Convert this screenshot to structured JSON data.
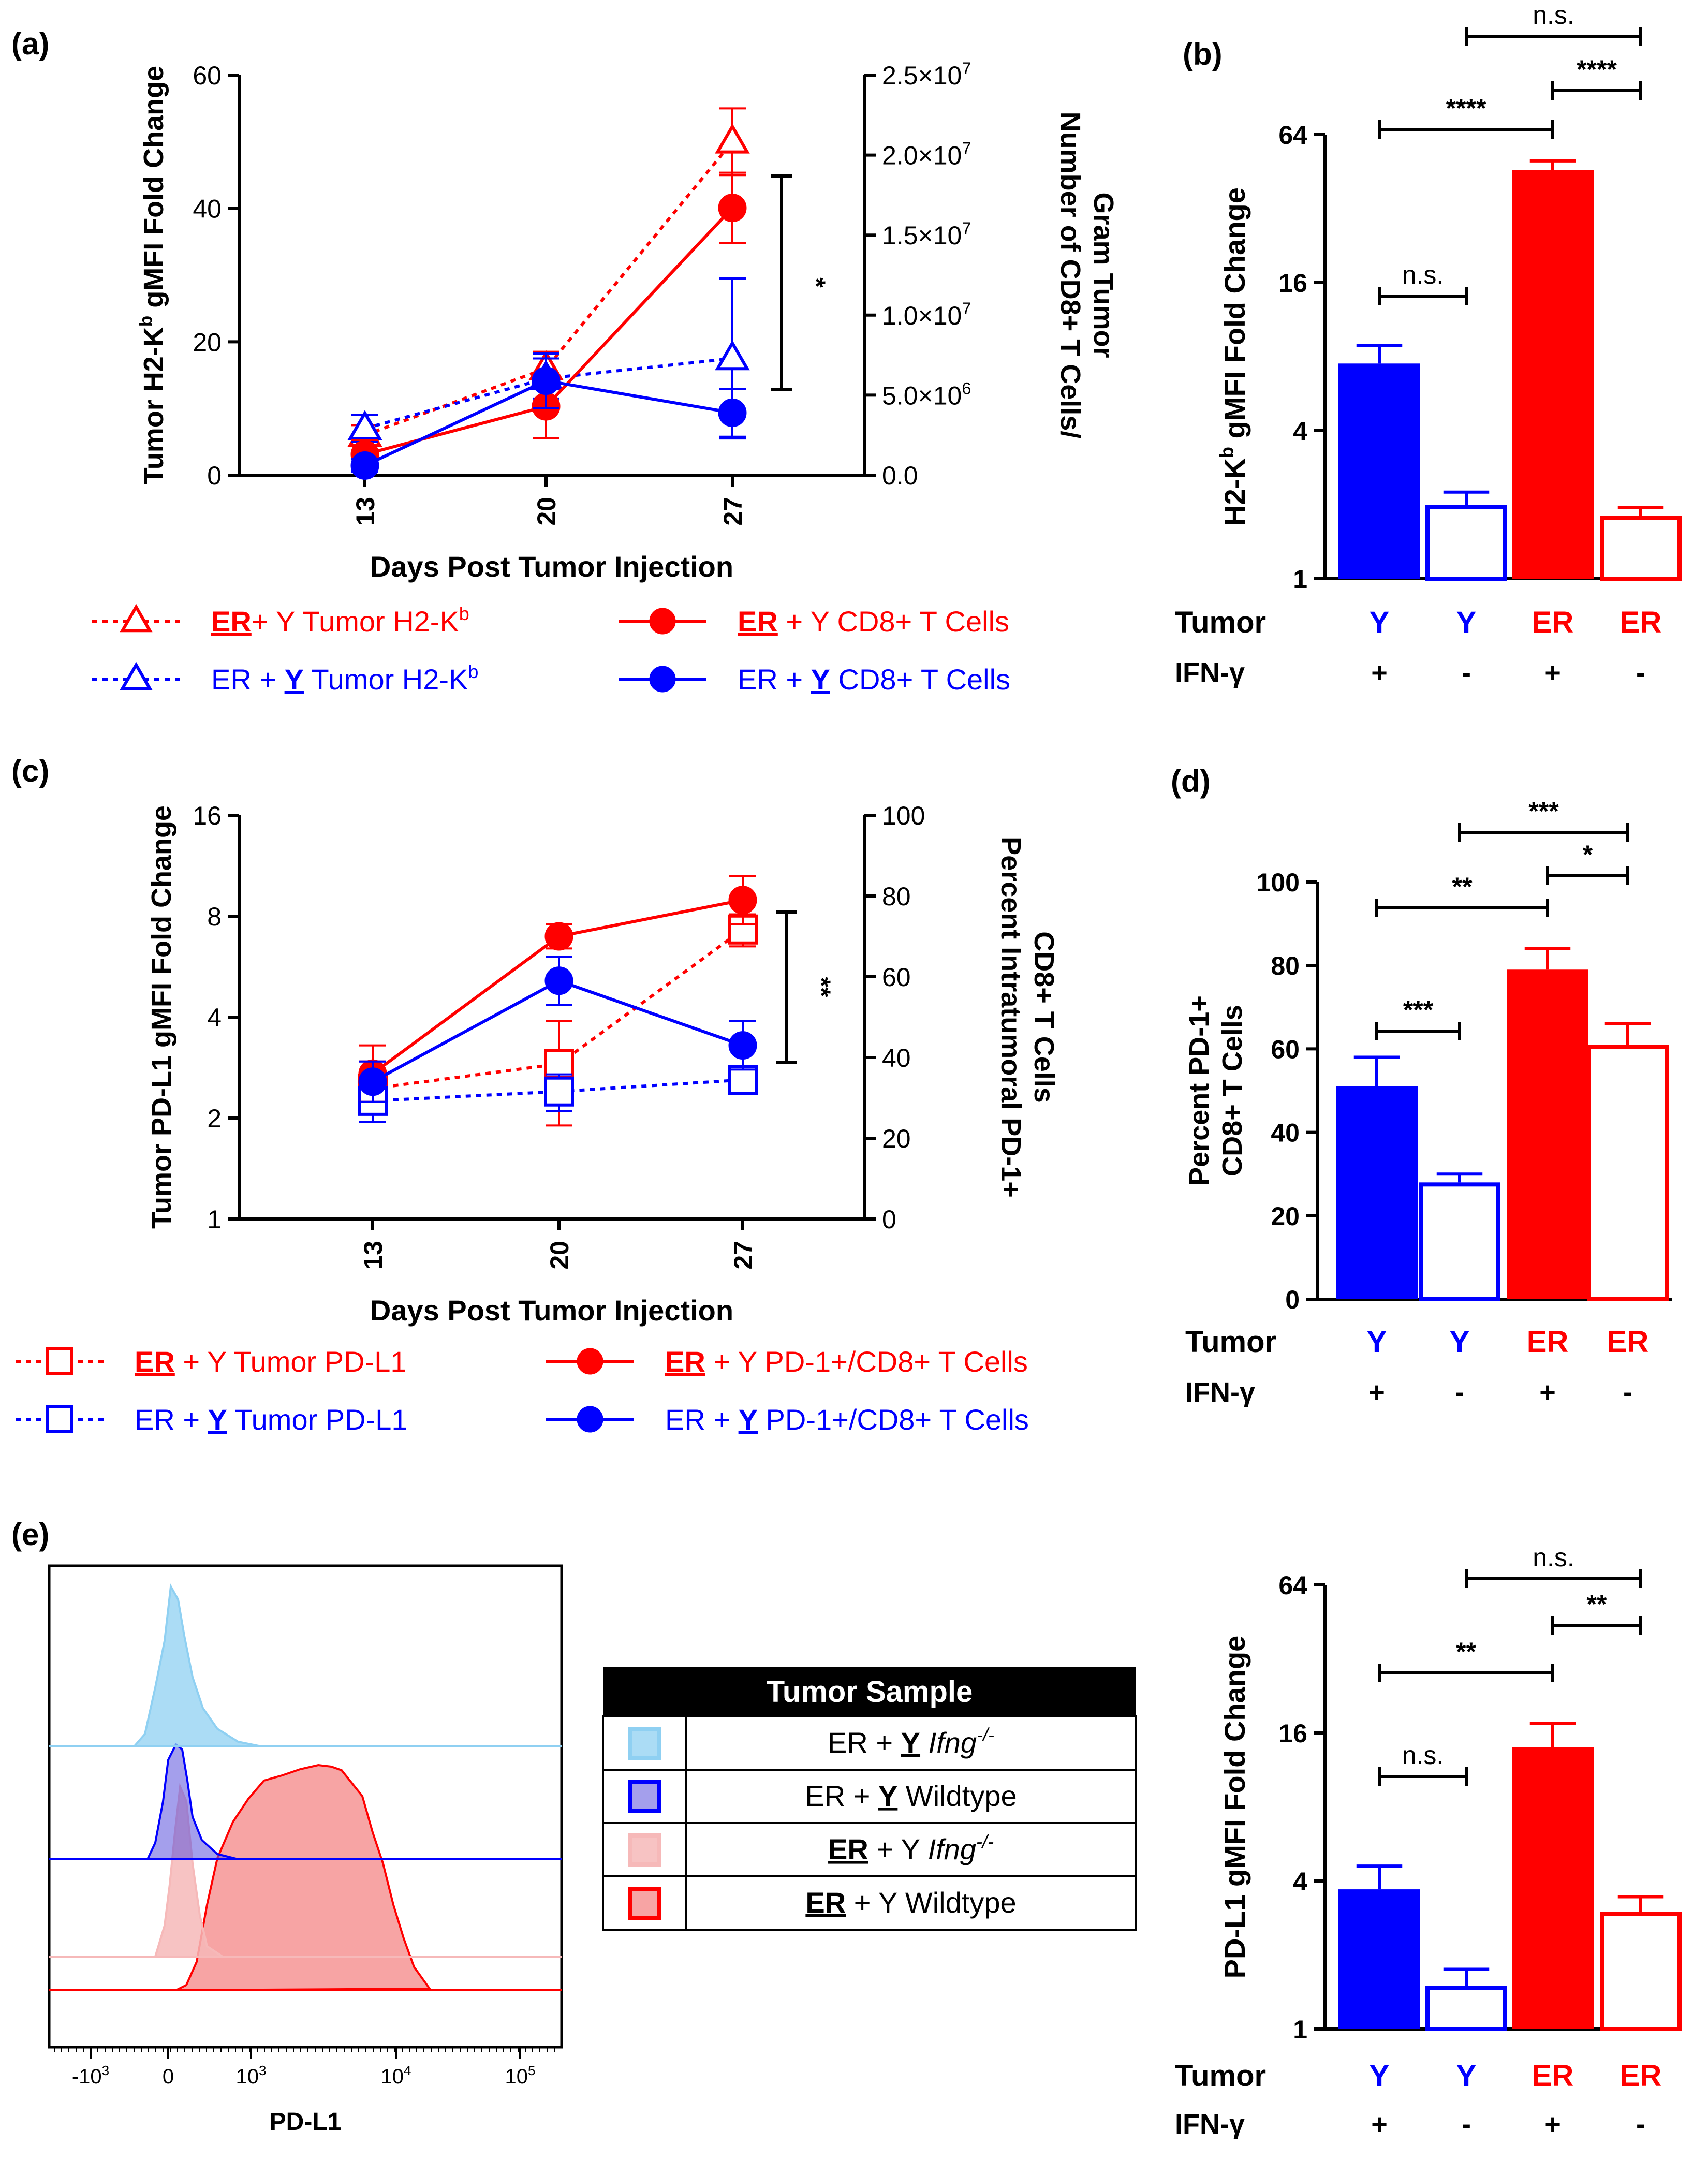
{
  "colors": {
    "red": "#ff0000",
    "blue": "#0000ff",
    "black": "#000000",
    "light_blue": "#8fd0f2",
    "light_red": "#f6b9b9"
  },
  "chart_data": [
    {
      "id": "a",
      "panel_label": "(a)",
      "type": "line",
      "xlabel": "Days Post Tumor Injection",
      "ylabel_left": "Tumor H2-K^b gMFI Fold Change",
      "ylabel_right_line1": "Number of CD8+ T Cells/",
      "ylabel_right_line2": "Gram Tumor",
      "x": [
        13,
        20,
        27
      ],
      "ylim_left": [
        0,
        60
      ],
      "ylim_right": [
        0,
        25000000
      ],
      "left_ticks": [
        "0",
        "20",
        "40",
        "60"
      ],
      "right_ticks": [
        "0.0",
        "5.0×10^6",
        "1.0×10^7",
        "1.5×10^7",
        "2.0×10^7",
        "2.5×10^7"
      ],
      "significance": "*",
      "series": [
        {
          "name": "ER+ Y Tumor H2-K^b",
          "axis": "left",
          "color": "red",
          "style": "dotted",
          "marker": "triangle-open",
          "values": [
            6,
            16,
            50
          ],
          "err": [
            1.5,
            2.5,
            5
          ]
        },
        {
          "name": "ER + Y Tumor H2-K^b",
          "axis": "left",
          "color": "blue",
          "style": "dotted",
          "marker": "triangle-open",
          "values": [
            7,
            14.5,
            17.5
          ],
          "err": [
            2,
            3,
            12
          ]
        },
        {
          "name": "ER + Y CD8+ T Cells",
          "axis": "right",
          "color": "red",
          "style": "solid",
          "marker": "circle-filled",
          "values": [
            1300000,
            4300000,
            16700000
          ],
          "err": [
            900000,
            2000000,
            2200000
          ]
        },
        {
          "name": "ER + Y CD8+ T Cells",
          "axis": "right",
          "color": "blue",
          "style": "solid",
          "marker": "circle-filled",
          "values": [
            600000,
            5900000,
            3900000
          ],
          "err": [
            400000,
            1700000,
            1500000
          ]
        }
      ]
    },
    {
      "id": "b",
      "panel_label": "(b)",
      "type": "bar",
      "ylabel": "H2-K^b gMFI Fold Change",
      "yscale": "log2",
      "ylim": [
        1,
        64
      ],
      "ticks": [
        "1",
        "4",
        "16",
        "64"
      ],
      "categories": [
        "Y +",
        "Y -",
        "ER +",
        "ER -"
      ],
      "tumor": [
        "Y",
        "Y",
        "ER",
        "ER"
      ],
      "ifng": [
        "+",
        "-",
        "+",
        "-"
      ],
      "bar_colors": [
        "blue",
        "blue",
        "red",
        "red"
      ],
      "bar_filled": [
        true,
        false,
        true,
        false
      ],
      "values": [
        7.5,
        2,
        46,
        1.8
      ],
      "err": [
        1.4,
        0.25,
        4,
        0.15
      ],
      "row_labels": {
        "tumor": "Tumor",
        "ifng": "IFN-γ"
      },
      "brackets": [
        {
          "from": 0,
          "to": 1,
          "label": "n.s."
        },
        {
          "from": 0,
          "to": 2,
          "label": "****"
        },
        {
          "from": 2,
          "to": 3,
          "label": "****"
        },
        {
          "from": 1,
          "to": 3,
          "label": "n.s."
        }
      ]
    },
    {
      "id": "c",
      "panel_label": "(c)",
      "type": "line",
      "xlabel": "Days Post Tumor Injection",
      "ylabel_left": "Tumor PD-L1 gMFI Fold Change",
      "ylabel_right_line1": "Percent Intratumoral PD-1+",
      "ylabel_right_line2": "CD8+ T Cells",
      "x": [
        13,
        20,
        27
      ],
      "ylim_left": [
        1,
        16
      ],
      "yscale_left": "log2",
      "ylim_right": [
        0,
        100
      ],
      "left_ticks": [
        "1",
        "2",
        "4",
        "8",
        "16"
      ],
      "right_ticks": [
        "0",
        "20",
        "40",
        "60",
        "80",
        "100"
      ],
      "significance": "**",
      "series": [
        {
          "name": "ER + Y Tumor PD-L1",
          "axis": "left",
          "color": "red",
          "style": "dotted",
          "marker": "square-open",
          "values": [
            2.45,
            2.9,
            7.3
          ],
          "err": [
            0.5,
            1,
            0.8
          ]
        },
        {
          "name": "ER + Y Tumor PD-L1",
          "axis": "left",
          "color": "blue",
          "style": "dotted",
          "marker": "square-open",
          "values": [
            2.25,
            2.4,
            2.6
          ],
          "err": [
            0.3,
            0.3,
            0.2
          ]
        },
        {
          "name": "ER + Y PD-1+/CD8+ T Cells",
          "axis": "right",
          "color": "red",
          "style": "solid",
          "marker": "circle-filled",
          "values": [
            36,
            70,
            79
          ],
          "err": [
            7,
            3,
            6
          ]
        },
        {
          "name": "ER + Y PD-1+/CD8+ T Cells",
          "axis": "right",
          "color": "blue",
          "style": "solid",
          "marker": "circle-filled",
          "values": [
            34,
            59,
            43
          ],
          "err": [
            5,
            6,
            6
          ]
        }
      ]
    },
    {
      "id": "d",
      "panel_label": "(d)",
      "type": "bar",
      "ylabel_line1": "Percent PD-1+",
      "ylabel_line2": "CD8+ T Cells",
      "yscale": "linear",
      "ylim": [
        0,
        100
      ],
      "ticks": [
        "0",
        "20",
        "40",
        "60",
        "80",
        "100"
      ],
      "categories": [
        "Y +",
        "Y -",
        "ER +",
        "ER -"
      ],
      "tumor": [
        "Y",
        "Y",
        "ER",
        "ER"
      ],
      "ifng": [
        "+",
        "-",
        "+",
        "-"
      ],
      "bar_colors": [
        "blue",
        "blue",
        "red",
        "red"
      ],
      "bar_filled": [
        true,
        false,
        true,
        false
      ],
      "values": [
        51,
        28,
        79,
        61
      ],
      "err": [
        7,
        2,
        5,
        5
      ],
      "row_labels": {
        "tumor": "Tumor",
        "ifng": "IFN-γ"
      },
      "brackets": [
        {
          "from": 0,
          "to": 1,
          "label": "***"
        },
        {
          "from": 0,
          "to": 2,
          "label": "**"
        },
        {
          "from": 2,
          "to": 3,
          "label": "*"
        },
        {
          "from": 1,
          "to": 3,
          "label": "***"
        }
      ]
    },
    {
      "id": "e_hist",
      "panel_label": "(e)",
      "type": "histogram",
      "xlabel": "PD-L1",
      "x_ticks": [
        "-10^3",
        "0",
        "10^3",
        "10^4",
        "10^5"
      ],
      "legend_header": "Tumor Sample",
      "legend_rows": [
        {
          "pre": "ER + ",
          "ul": "Y",
          "post": " ",
          "italic": "Ifng",
          "sup": "-/-",
          "color": "light_blue"
        },
        {
          "pre": "ER + ",
          "ul": "Y",
          "post": " Wildtype",
          "italic": "",
          "sup": "",
          "color": "blue"
        },
        {
          "pre": "",
          "ul": "ER",
          "post": " + Y ",
          "italic": "Ifng",
          "sup": "-/-",
          "color": "light_red"
        },
        {
          "pre": "",
          "ul": "ER",
          "post": " + Y Wildtype",
          "italic": "",
          "sup": "",
          "color": "red"
        }
      ]
    },
    {
      "id": "e_bar",
      "type": "bar",
      "ylabel": "PD-L1 gMFI Fold Change",
      "yscale": "log2",
      "ylim": [
        1,
        64
      ],
      "ticks": [
        "1",
        "4",
        "16",
        "64"
      ],
      "categories": [
        "Y +",
        "Y -",
        "ER +",
        "ER -"
      ],
      "tumor": [
        "Y",
        "Y",
        "ER",
        "ER"
      ],
      "ifng": [
        "+",
        "-",
        "+",
        "-"
      ],
      "bar_colors": [
        "blue",
        "blue",
        "red",
        "red"
      ],
      "bar_filled": [
        true,
        false,
        true,
        false
      ],
      "values": [
        3.7,
        1.5,
        14,
        3
      ],
      "err": [
        0.9,
        0.25,
        3.5,
        0.45
      ],
      "row_labels": {
        "tumor": "Tumor",
        "ifng": "IFN-γ"
      },
      "brackets": [
        {
          "from": 0,
          "to": 1,
          "label": "n.s."
        },
        {
          "from": 0,
          "to": 2,
          "label": "**"
        },
        {
          "from": 2,
          "to": 3,
          "label": "**"
        },
        {
          "from": 1,
          "to": 3,
          "label": "n.s."
        }
      ]
    }
  ],
  "legend_a": [
    {
      "text_pre": "",
      "ul": "ER",
      "text_post": "+ Y Tumor H2-K",
      "sup": "b",
      "color": "red",
      "style": "dotted",
      "marker": "triangle-open"
    },
    {
      "text_pre": "",
      "ul": "ER",
      "text_post": " + Y CD8+ T Cells",
      "sup": "",
      "color": "red",
      "style": "solid",
      "marker": "circle-filled"
    },
    {
      "text_pre": "ER + ",
      "ul": "Y",
      "text_post": " Tumor H2-K",
      "sup": "b",
      "color": "blue",
      "style": "dotted",
      "marker": "triangle-open"
    },
    {
      "text_pre": "ER + ",
      "ul": "Y",
      "text_post": " CD8+ T Cells",
      "sup": "",
      "color": "blue",
      "style": "solid",
      "marker": "circle-filled"
    }
  ],
  "legend_c": [
    {
      "text_pre": "",
      "ul": "ER",
      "text_post": " + Y Tumor PD-L1",
      "sup": "",
      "color": "red",
      "style": "dotted",
      "marker": "square-open"
    },
    {
      "text_pre": "",
      "ul": "ER",
      "text_post": " + Y  PD-1+/CD8+ T Cells",
      "sup": "",
      "color": "red",
      "style": "solid",
      "marker": "circle-filled"
    },
    {
      "text_pre": "ER + ",
      "ul": "Y",
      "text_post": " Tumor PD-L1",
      "sup": "",
      "color": "blue",
      "style": "dotted",
      "marker": "square-open"
    },
    {
      "text_pre": "ER + ",
      "ul": "Y",
      "text_post": "  PD-1+/CD8+ T Cells",
      "sup": "",
      "color": "blue",
      "style": "solid",
      "marker": "circle-filled"
    }
  ]
}
